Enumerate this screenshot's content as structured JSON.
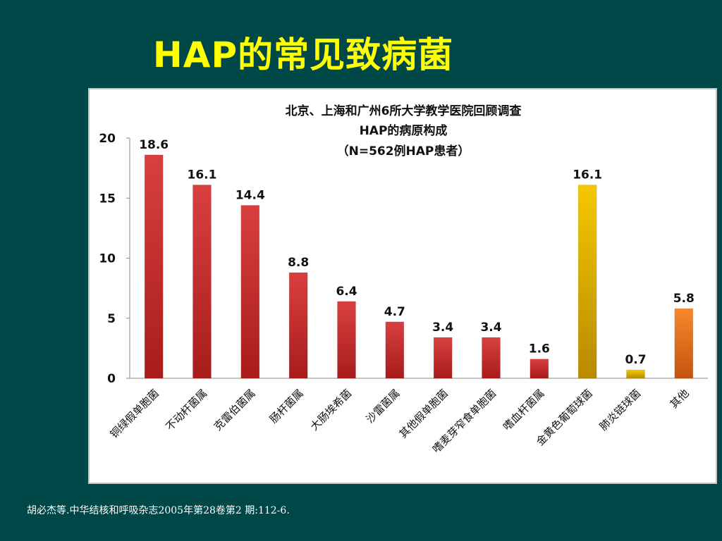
{
  "slide": {
    "title": "HAP的常见致病菌",
    "citation": "胡必杰等.中华结核和呼吸杂志2005年第28卷第2 期:112-6."
  },
  "colors": {
    "background": "#004848",
    "title": "#FFFF00",
    "bar_red": "#cc3333",
    "bar_gold": "#e8b800",
    "bar_orange": "#f07a22"
  },
  "chart_data": {
    "type": "bar",
    "title": [
      "北京、上海和广州6所大学教学医院回顾调查",
      "HAP的病原构成",
      "（N=562例HAP患者）"
    ],
    "xlabel": "",
    "ylabel": "",
    "ylim": [
      0,
      20
    ],
    "yticks": [
      "0",
      "5",
      "10",
      "15",
      "20"
    ],
    "grid": false,
    "categories": [
      "铜绿假单胞菌",
      "不动杆菌属",
      "克雷伯菌属",
      "肠杆菌属",
      "大肠埃希菌",
      "沙雷菌属",
      "其他假单胞菌",
      "嗜麦芽窄食单胞菌",
      "嗜血杆菌属",
      "金黄色葡萄球菌",
      "肺炎链球菌",
      "其他"
    ],
    "values": [
      18.6,
      16.1,
      14.4,
      8.8,
      6.4,
      4.7,
      3.4,
      3.4,
      1.6,
      16.1,
      0.7,
      5.8
    ],
    "data_labels": [
      "18.6",
      "16.1",
      "14.4",
      "8.8",
      "6.4",
      "4.7",
      "3.4",
      "3.4",
      "1.6",
      "16.1",
      "0.7",
      "5.8"
    ],
    "bar_colors": [
      "red",
      "red",
      "red",
      "red",
      "red",
      "red",
      "red",
      "red",
      "red",
      "gold",
      "gold",
      "orange"
    ]
  }
}
